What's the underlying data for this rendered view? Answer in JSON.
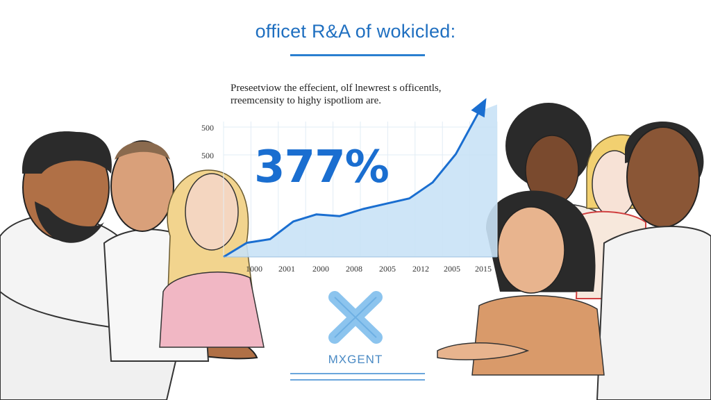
{
  "header": {
    "title": "officet R&A of wokicled:",
    "subtitle_lines": [
      "Preseetviow the effecient, olf lnewrest s officentls,",
      "rreemcensity to highy ispotliom are."
    ]
  },
  "highlight": {
    "value": "377%"
  },
  "brand": {
    "label": "MXGENT"
  },
  "colors": {
    "accent": "#1a6ed0",
    "area_fill": "#c9e2f6",
    "title": "#1f6fc0"
  },
  "icons": {
    "logo": "x-mark-icon",
    "trend": "arrow-up-right-icon"
  },
  "chart_data": {
    "type": "area",
    "title": "",
    "xlabel": "",
    "ylabel": "",
    "x_tick_labels": [
      "1000",
      "2001",
      "2000",
      "2008",
      "2005",
      "2012",
      "2005",
      "2015"
    ],
    "y_tick_labels": [
      "500",
      "500"
    ],
    "series": [
      {
        "values": [
          0,
          8,
          10,
          20,
          24,
          23,
          27,
          30,
          33,
          42,
          58,
          82
        ]
      }
    ],
    "grid": true,
    "legend": "none"
  }
}
